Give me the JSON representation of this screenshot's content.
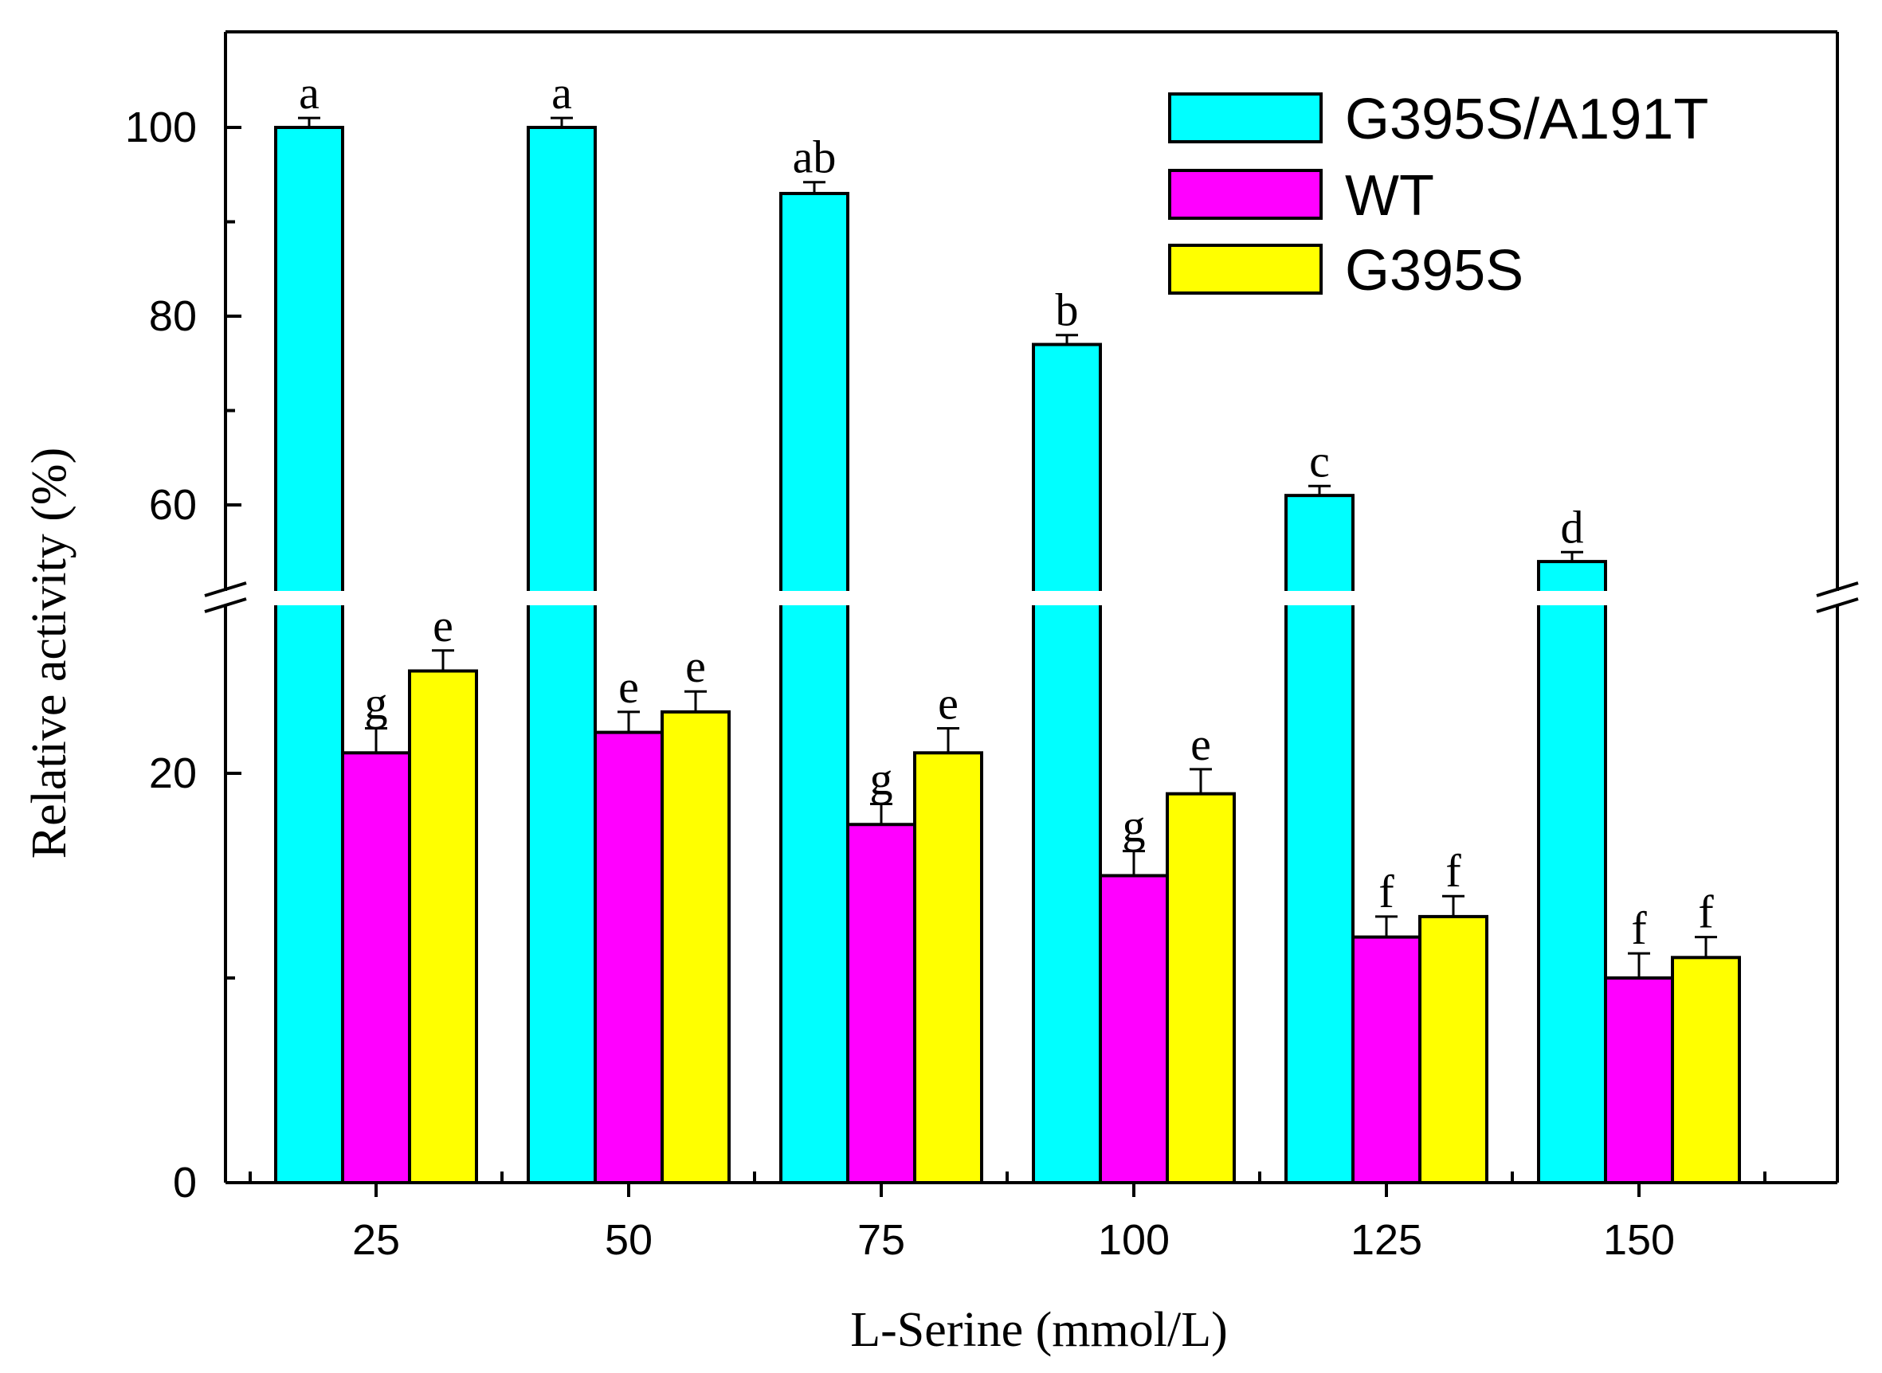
{
  "chart_data": {
    "type": "bar",
    "title": "",
    "xlabel": "L-Serine (mmol/L)",
    "ylabel": "Relative activity (%)",
    "categories": [
      "25",
      "50",
      "75",
      "100",
      "125",
      "150"
    ],
    "y_break": {
      "lower_range": [
        0,
        30
      ],
      "upper_range": [
        50,
        110
      ]
    },
    "ylim": [
      0,
      110
    ],
    "yticks_labeled": [
      "0",
      "20",
      "60",
      "80",
      "100"
    ],
    "legend_position": "top-right",
    "series": [
      {
        "name": "G395S/A191T",
        "color": "#00ffff",
        "values": [
          100,
          100,
          93,
          77,
          61,
          54
        ],
        "errors": [
          1,
          1,
          1.2,
          1,
          1,
          1
        ],
        "labels": [
          "a",
          "a",
          "ab",
          "b",
          "c",
          "d"
        ]
      },
      {
        "name": "WT",
        "color": "#ff00ff",
        "values": [
          21,
          22,
          17.5,
          15,
          12,
          10
        ],
        "errors": [
          1.2,
          1,
          1,
          1.2,
          1,
          1.2
        ],
        "labels": [
          "g",
          "e",
          "g",
          "g",
          "f",
          "f"
        ]
      },
      {
        "name": "G395S",
        "color": "#ffff00",
        "values": [
          25,
          23,
          21,
          19,
          13,
          11
        ],
        "errors": [
          1,
          1,
          1.2,
          1.2,
          1,
          1
        ],
        "labels": [
          "e",
          "e",
          "e",
          "e",
          "f",
          "f"
        ]
      }
    ]
  }
}
